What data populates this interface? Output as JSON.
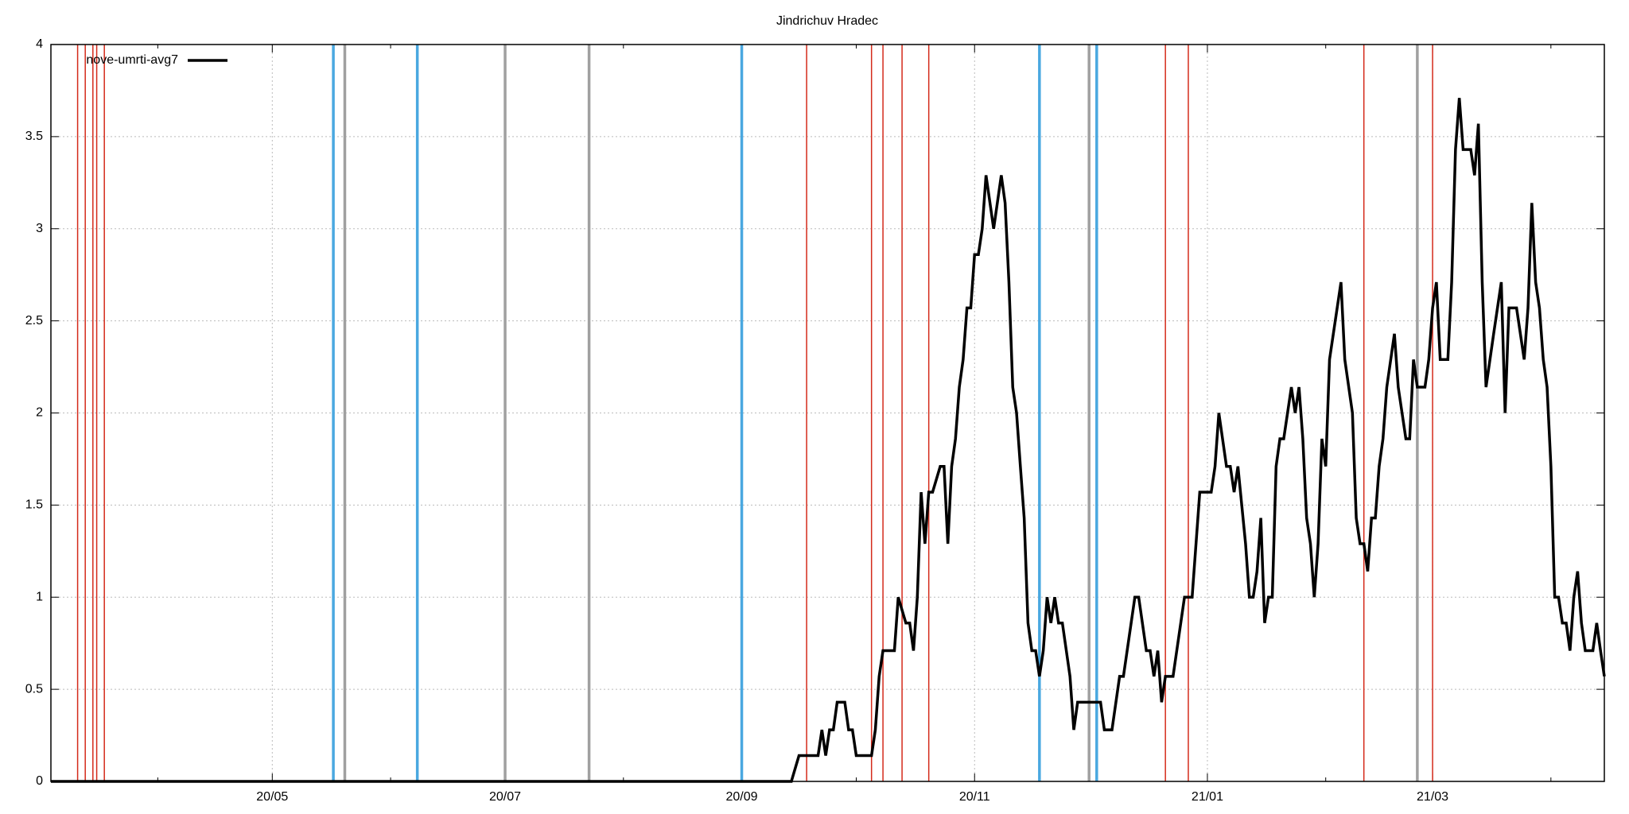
{
  "chart_data": {
    "type": "line",
    "title": "Jindrichuv Hradec",
    "xlim": [
      0,
      407
    ],
    "xticks": [
      {
        "value": 58,
        "label": "20/05"
      },
      {
        "value": 119,
        "label": "20/07"
      },
      {
        "value": 181,
        "label": "20/09"
      },
      {
        "value": 242,
        "label": "20/11"
      },
      {
        "value": 303,
        "label": "21/01"
      },
      {
        "value": 362,
        "label": "21/03"
      }
    ],
    "xminorticks": [
      28,
      89,
      150,
      211,
      272,
      334,
      393
    ],
    "ylim": [
      0,
      4
    ],
    "yticks": [
      0,
      0.5,
      1,
      1.5,
      2,
      2.5,
      3,
      3.5,
      4
    ],
    "grid": true,
    "legend": "top-left",
    "events": [
      {
        "color": "#d42a1a",
        "width": 1.5,
        "x": [
          7,
          9,
          11,
          12,
          14,
          198,
          215,
          218,
          223,
          230,
          292,
          298,
          344,
          362
        ]
      },
      {
        "color": "#4aa8e0",
        "width": 3.5,
        "x": [
          74,
          96,
          181,
          259,
          274
        ]
      },
      {
        "color": "#a0a0a0",
        "width": 3.5,
        "x": [
          77,
          119,
          141,
          272,
          358
        ]
      }
    ],
    "series": [
      {
        "name": "nove-umrti-avg7",
        "color": "#000000",
        "x": [
          0,
          194,
          196,
          201,
          202,
          203,
          204,
          205,
          206,
          208,
          209,
          210,
          211,
          215,
          216,
          217,
          218,
          221,
          222,
          224,
          225,
          226,
          227,
          228,
          229,
          230,
          231,
          233,
          234,
          235,
          236,
          237,
          238,
          239,
          240,
          241,
          242,
          243,
          244,
          245,
          247,
          249,
          250,
          251,
          252,
          253,
          254,
          255,
          256,
          257,
          258,
          259,
          260,
          261,
          262,
          263,
          264,
          265,
          267,
          268,
          269,
          275,
          276,
          278,
          280,
          281,
          284,
          285,
          287,
          288,
          289,
          290,
          291,
          292,
          294,
          297,
          299,
          301,
          304,
          305,
          306,
          308,
          309,
          310,
          311,
          313,
          314,
          315,
          316,
          317,
          318,
          319,
          320,
          321,
          322,
          323,
          325,
          326,
          327,
          328,
          329,
          330,
          331,
          332,
          333,
          334,
          335,
          336,
          338,
          339,
          341,
          342,
          343,
          344,
          345,
          346,
          347,
          348,
          349,
          350,
          352,
          353,
          355,
          356,
          357,
          358,
          360,
          361,
          362,
          363,
          364,
          366,
          367,
          368,
          369,
          370,
          372,
          373,
          374,
          375,
          376,
          378,
          380,
          381,
          382,
          384,
          386,
          387,
          388,
          389,
          390,
          391,
          392,
          393,
          394,
          395,
          396,
          397,
          398,
          399,
          400,
          401,
          402,
          404,
          405,
          406,
          407
        ],
        "values": [
          0,
          0,
          0.14,
          0.14,
          0.28,
          0.14,
          0.28,
          0.28,
          0.43,
          0.43,
          0.28,
          0.28,
          0.14,
          0.14,
          0.28,
          0.57,
          0.71,
          0.71,
          1.0,
          0.86,
          0.86,
          0.71,
          1.0,
          1.57,
          1.29,
          1.57,
          1.57,
          1.71,
          1.71,
          1.29,
          1.71,
          1.86,
          2.14,
          2.29,
          2.57,
          2.57,
          2.86,
          2.86,
          3.0,
          3.29,
          3.0,
          3.29,
          3.14,
          2.71,
          2.14,
          2.0,
          1.71,
          1.43,
          0.86,
          0.71,
          0.71,
          0.57,
          0.71,
          1.0,
          0.86,
          1.0,
          0.86,
          0.86,
          0.57,
          0.28,
          0.43,
          0.43,
          0.28,
          0.28,
          0.57,
          0.57,
          1.0,
          1.0,
          0.71,
          0.71,
          0.57,
          0.71,
          0.43,
          0.57,
          0.57,
          1.0,
          1.0,
          1.57,
          1.57,
          1.71,
          2.0,
          1.71,
          1.71,
          1.57,
          1.71,
          1.29,
          1.0,
          1.0,
          1.14,
          1.43,
          0.86,
          1.0,
          1.0,
          1.71,
          1.86,
          1.86,
          2.14,
          2.0,
          2.14,
          1.86,
          1.43,
          1.29,
          1.0,
          1.29,
          1.86,
          1.71,
          2.29,
          2.43,
          2.71,
          2.29,
          2.0,
          1.43,
          1.29,
          1.29,
          1.14,
          1.43,
          1.43,
          1.71,
          1.86,
          2.14,
          2.43,
          2.14,
          1.86,
          1.86,
          2.29,
          2.14,
          2.14,
          2.29,
          2.57,
          2.71,
          2.29,
          2.29,
          2.71,
          3.43,
          3.71,
          3.43,
          3.43,
          3.29,
          3.57,
          2.71,
          2.14,
          2.43,
          2.71,
          2.0,
          2.57,
          2.57,
          2.29,
          2.57,
          3.14,
          2.71,
          2.57,
          2.29,
          2.14,
          1.71,
          1.0,
          1.0,
          0.86,
          0.86,
          0.71,
          1.0,
          1.14,
          0.86,
          0.71,
          0.71,
          0.86,
          0.71,
          0.57
        ]
      }
    ]
  }
}
